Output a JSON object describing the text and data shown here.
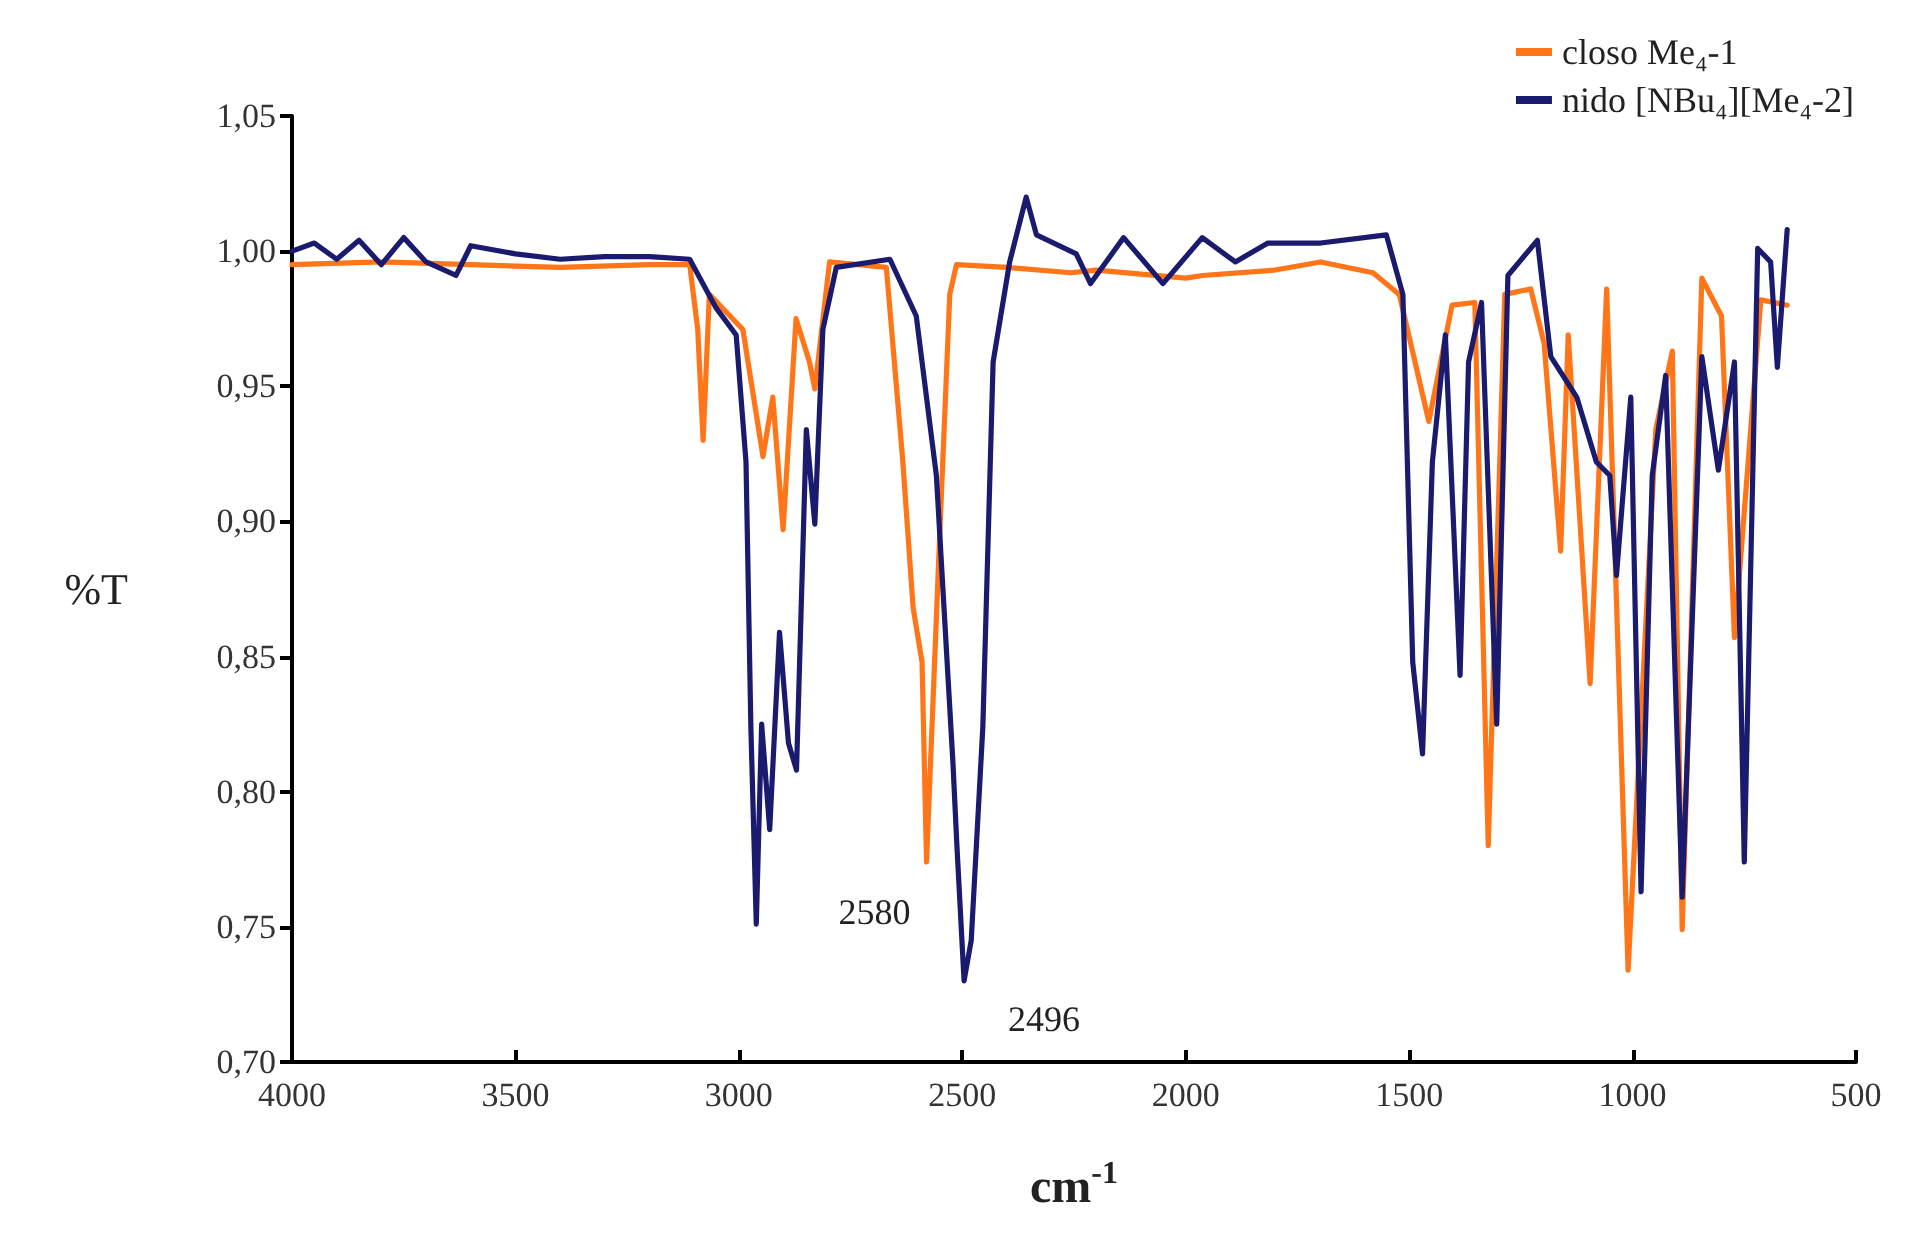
{
  "chart_data": {
    "type": "line",
    "xlabel": "cm$^{-1}$",
    "ylabel": "%T",
    "xlim": [
      4000,
      500
    ],
    "xticks": [
      4000,
      3500,
      3000,
      2500,
      2000,
      1500,
      1000,
      500
    ],
    "ylim": [
      0.7,
      1.05
    ],
    "yticks": [
      {
        "value": 0.7,
        "label": "0,70"
      },
      {
        "value": 0.75,
        "label": "0,75"
      },
      {
        "value": 0.8,
        "label": "0,80"
      },
      {
        "value": 0.85,
        "label": "0,85"
      },
      {
        "value": 0.9,
        "label": "0,90"
      },
      {
        "value": 0.95,
        "label": "0,95"
      },
      {
        "value": 1.0,
        "label": "1,00"
      },
      {
        "value": 1.05,
        "label": "1,05"
      }
    ],
    "grid": false,
    "legend": "top right",
    "marker": "none",
    "line_style": "solid",
    "series": [
      {
        "name": "closo Me₄-1",
        "color": "#ff7518",
        "x": [
          4000,
          3800,
          3600,
          3400,
          3200,
          3110,
          3092,
          3080,
          3066,
          2991,
          2946,
          2924,
          2901,
          2872,
          2842,
          2830,
          2797,
          2670,
          2633,
          2610,
          2590,
          2580,
          2550,
          2528,
          2513,
          2400,
          2257,
          2200,
          2000,
          1963,
          1800,
          1698,
          1581,
          1522,
          1456,
          1404,
          1353,
          1323,
          1286,
          1228,
          1198,
          1161,
          1144,
          1095,
          1058,
          1010,
          948,
          911,
          889,
          845,
          801,
          772,
          713,
          654
        ],
        "values": [
          0.995,
          0.996,
          0.995,
          0.994,
          0.995,
          0.995,
          0.971,
          0.93,
          0.984,
          0.971,
          0.924,
          0.946,
          0.897,
          0.975,
          0.959,
          0.949,
          0.996,
          0.994,
          0.922,
          0.868,
          0.848,
          0.774,
          0.897,
          0.984,
          0.995,
          0.994,
          0.992,
          0.993,
          0.99,
          0.991,
          0.993,
          0.996,
          0.992,
          0.984,
          0.937,
          0.98,
          0.981,
          0.78,
          0.984,
          0.986,
          0.966,
          0.889,
          0.969,
          0.84,
          0.986,
          0.734,
          0.934,
          0.963,
          0.749,
          0.99,
          0.976,
          0.857,
          0.982,
          0.98
        ]
      },
      {
        "name": "nido [NBu₄][Me₄-2]",
        "color": "#1a1a6e",
        "x": [
          4000,
          3950,
          3900,
          3850,
          3800,
          3750,
          3700,
          3633,
          3600,
          3500,
          3400,
          3300,
          3200,
          3110,
          3051,
          3006,
          2984,
          2973,
          2961,
          2949,
          2931,
          2909,
          2889,
          2871,
          2849,
          2830,
          2812,
          2782,
          2662,
          2603,
          2558,
          2521,
          2512,
          2496,
          2480,
          2454,
          2431,
          2394,
          2357,
          2334,
          2245,
          2213,
          2139,
          2051,
          1963,
          1889,
          1816,
          1698,
          1551,
          1514,
          1492,
          1470,
          1448,
          1419,
          1386,
          1367,
          1338,
          1304,
          1279,
          1213,
          1183,
          1125,
          1081,
          1051,
          1036,
          1004,
          981,
          956,
          926,
          889,
          845,
          808,
          772,
          750,
          720,
          691,
          676,
          654
        ],
        "values": [
          1.0,
          1.003,
          0.997,
          1.004,
          0.995,
          1.005,
          0.996,
          0.991,
          1.002,
          0.999,
          0.997,
          0.998,
          0.998,
          0.997,
          0.979,
          0.969,
          0.922,
          0.823,
          0.751,
          0.825,
          0.786,
          0.859,
          0.818,
          0.808,
          0.934,
          0.899,
          0.971,
          0.994,
          0.997,
          0.976,
          0.917,
          0.811,
          0.78,
          0.73,
          0.745,
          0.824,
          0.959,
          0.996,
          1.02,
          1.006,
          0.999,
          0.988,
          1.005,
          0.988,
          1.005,
          0.996,
          1.003,
          1.003,
          1.006,
          0.984,
          0.848,
          0.814,
          0.922,
          0.969,
          0.843,
          0.959,
          0.981,
          0.825,
          0.991,
          1.004,
          0.961,
          0.946,
          0.922,
          0.917,
          0.88,
          0.946,
          0.763,
          0.917,
          0.954,
          0.761,
          0.961,
          0.919,
          0.959,
          0.774,
          1.001,
          0.996,
          0.957,
          1.008
        ]
      }
    ],
    "annotations": [
      {
        "text": "2580",
        "x": 2580,
        "y": 0.774
      },
      {
        "text": "2496",
        "x": 2496,
        "y": 0.73
      }
    ]
  }
}
